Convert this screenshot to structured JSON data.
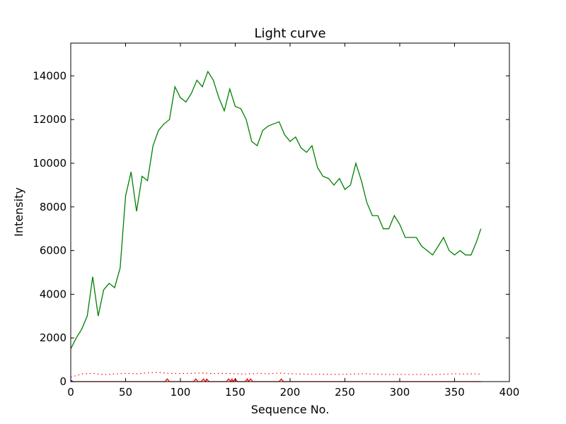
{
  "chart_data": {
    "type": "line",
    "title": "Light curve",
    "xlabel": "Sequence No.",
    "ylabel": "Intensity",
    "xlim": [
      0,
      400
    ],
    "ylim": [
      0,
      15500
    ],
    "xticks": [
      0,
      50,
      100,
      150,
      200,
      250,
      300,
      350,
      400
    ],
    "yticks": [
      0,
      2000,
      4000,
      6000,
      8000,
      10000,
      12000,
      14000
    ],
    "grid": false,
    "legend": "none",
    "series": [
      {
        "color": "#008000",
        "style": "solid",
        "x": [
          0,
          5,
          10,
          15,
          20,
          25,
          30,
          35,
          40,
          45,
          50,
          55,
          60,
          65,
          70,
          75,
          80,
          85,
          90,
          95,
          100,
          105,
          110,
          115,
          120,
          125,
          130,
          135,
          140,
          145,
          150,
          155,
          160,
          165,
          170,
          175,
          180,
          185,
          190,
          195,
          200,
          205,
          210,
          215,
          220,
          225,
          230,
          235,
          240,
          245,
          250,
          255,
          260,
          265,
          270,
          275,
          280,
          285,
          290,
          295,
          300,
          305,
          310,
          315,
          320,
          325,
          330,
          335,
          340,
          345,
          350,
          355,
          360,
          365,
          370,
          374
        ],
        "values": [
          1500,
          2000,
          2400,
          3000,
          4800,
          3000,
          4200,
          4500,
          4300,
          5200,
          8500,
          9600,
          7800,
          9400,
          9200,
          10800,
          11500,
          11800,
          12000,
          13500,
          13000,
          12800,
          13200,
          13800,
          13500,
          14200,
          13800,
          13000,
          12400,
          13400,
          12600,
          12500,
          12000,
          11000,
          10800,
          11500,
          11700,
          11800,
          11900,
          11300,
          11000,
          11200,
          10700,
          10500,
          10800,
          9800,
          9400,
          9300,
          9000,
          9300,
          8800,
          9000,
          10000,
          9200,
          8200,
          7600,
          7600,
          7000,
          7000,
          7600,
          7200,
          6600,
          6600,
          6600,
          6200,
          6000,
          5800,
          6200,
          6600,
          6000,
          5800,
          6000,
          5800,
          5800,
          6400,
          7000
        ]
      },
      {
        "color": "#ff0000",
        "style": "dotted",
        "x": [
          0,
          10,
          20,
          30,
          40,
          50,
          60,
          70,
          80,
          90,
          100,
          110,
          120,
          130,
          140,
          150,
          160,
          170,
          180,
          190,
          200,
          210,
          220,
          230,
          240,
          250,
          260,
          270,
          280,
          290,
          300,
          310,
          320,
          330,
          340,
          350,
          360,
          370,
          374
        ],
        "values": [
          200,
          350,
          380,
          320,
          350,
          380,
          360,
          400,
          420,
          380,
          370,
          380,
          390,
          370,
          380,
          360,
          350,
          380,
          360,
          390,
          360,
          350,
          340,
          340,
          330,
          340,
          350,
          360,
          340,
          330,
          330,
          320,
          330,
          320,
          340,
          360,
          350,
          360,
          340
        ]
      },
      {
        "color": "#ff0000",
        "style": "solid",
        "x": [
          0,
          86,
          88,
          90,
          112,
          114,
          116,
          119,
          121,
          123,
          124,
          126,
          128,
          142,
          144,
          146,
          147,
          148,
          150,
          152,
          159,
          161,
          162,
          164,
          166,
          190,
          192,
          194,
          374
        ],
        "values": [
          0,
          0,
          120,
          0,
          0,
          120,
          0,
          0,
          120,
          0,
          120,
          0,
          0,
          0,
          120,
          0,
          120,
          0,
          120,
          0,
          0,
          120,
          0,
          120,
          0,
          0,
          120,
          0,
          0
        ]
      },
      {
        "color": "#0000ff",
        "style": "solid",
        "x": [
          0,
          2
        ],
        "values": [
          60,
          0
        ]
      }
    ]
  }
}
